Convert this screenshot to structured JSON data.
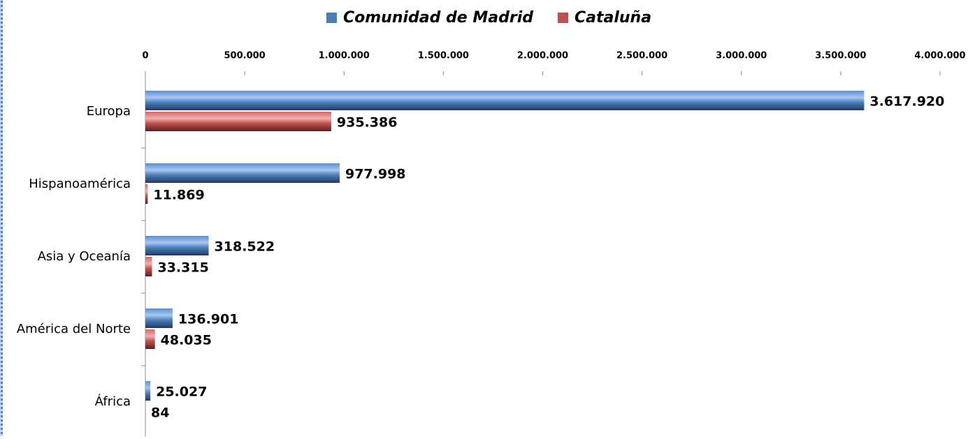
{
  "chart_data": {
    "type": "bar",
    "orientation": "horizontal",
    "categories": [
      "Europa",
      "Hispanoamérica",
      "Asia y Oceanía",
      "América del Norte",
      "África"
    ],
    "series": [
      {
        "name": "Comunidad de Madrid",
        "color": "#4a7ebb",
        "values": [
          3617920,
          977998,
          318522,
          136901,
          25027
        ],
        "value_labels": [
          "3.617.920",
          "977.998",
          "318.522",
          "136.901",
          "25.027"
        ]
      },
      {
        "name": "Cataluña",
        "color": "#c0504d",
        "values": [
          935386,
          11869,
          33315,
          48035,
          84
        ],
        "value_labels": [
          "935.386",
          "11.869",
          "33.315",
          "48.035",
          "84"
        ]
      }
    ],
    "xlim": [
      0,
      4000000
    ],
    "xticks": [
      0,
      {
        "value": 500000,
        "label": "500.000"
      },
      {
        "value": 1000000,
        "label": "1.000.000"
      },
      {
        "value": 1500000,
        "label": "1.500.000"
      },
      {
        "value": 2000000,
        "label": "2.000.000"
      },
      {
        "value": 2500000,
        "label": "2.500.000"
      },
      {
        "value": 3000000,
        "label": "3.000.000"
      },
      {
        "value": 3500000,
        "label": "3.500.000"
      },
      {
        "value": 4000000,
        "label": "4.000.000"
      }
    ],
    "legend": "top"
  }
}
